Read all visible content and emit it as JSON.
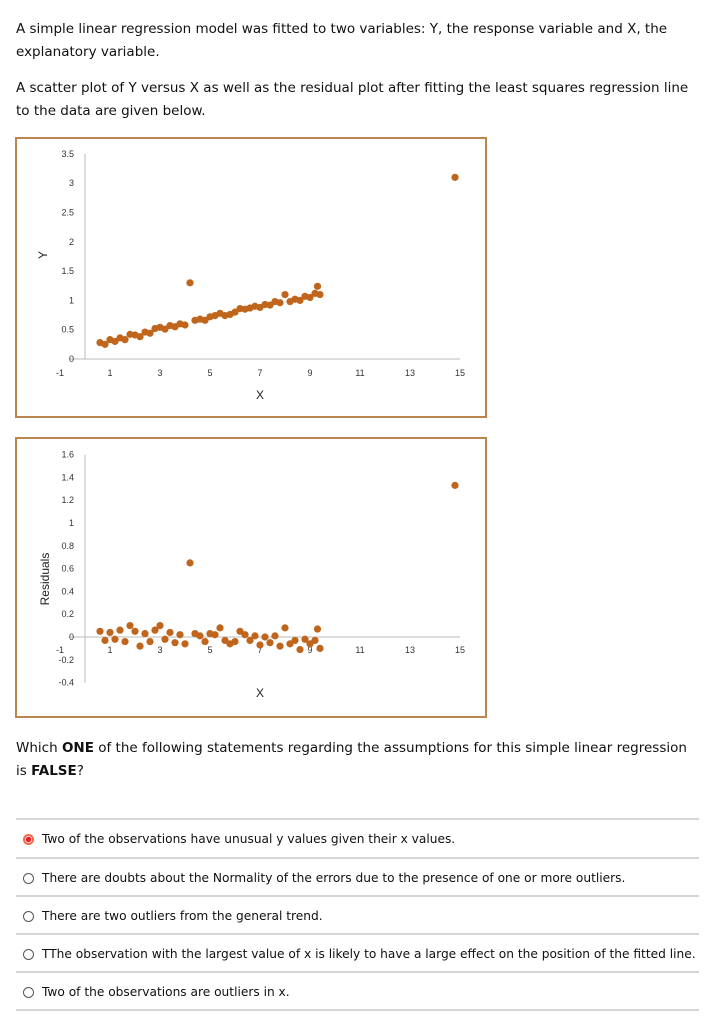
{
  "intro": {
    "p1": "A simple linear regression model was fitted to two variables: Y, the response variable and X, the explanatory variable.",
    "p2": "A scatter plot of Y versus X as well as the residual plot after fitting the least squares regression line to the data are given below."
  },
  "colors": {
    "points": "#c0651c",
    "frame": "#b9864f",
    "selected_radio": "#e8202a"
  },
  "chart_data": [
    {
      "type": "scatter",
      "xlabel": "X",
      "ylabel": "Y",
      "xlim": [
        -1,
        15
      ],
      "ylim": [
        0,
        3.5
      ],
      "xticks": [
        "-1",
        "1",
        "3",
        "5",
        "7",
        "9",
        "11",
        "13",
        "15"
      ],
      "yticks": [
        "3.5",
        "3",
        "2.5",
        "2",
        "1.5",
        "1",
        "0.5",
        "0"
      ],
      "grid": false,
      "x": [
        0.6,
        0.8,
        1.0,
        1.2,
        1.4,
        1.6,
        1.8,
        2.0,
        2.2,
        2.4,
        2.6,
        2.8,
        3.0,
        3.2,
        3.4,
        3.6,
        3.8,
        4.0,
        4.4,
        4.6,
        4.8,
        5.0,
        5.2,
        5.4,
        5.6,
        5.8,
        6.0,
        6.2,
        6.4,
        6.6,
        6.8,
        7.0,
        7.2,
        7.4,
        7.6,
        7.8,
        8.0,
        8.2,
        8.4,
        8.6,
        8.8,
        9.0,
        9.2,
        9.3,
        9.4,
        4.2,
        14.8
      ],
      "y": [
        0.28,
        0.25,
        0.33,
        0.3,
        0.36,
        0.33,
        0.42,
        0.41,
        0.38,
        0.46,
        0.44,
        0.52,
        0.54,
        0.51,
        0.57,
        0.55,
        0.6,
        0.58,
        0.66,
        0.68,
        0.66,
        0.72,
        0.74,
        0.78,
        0.74,
        0.76,
        0.8,
        0.86,
        0.85,
        0.87,
        0.9,
        0.88,
        0.93,
        0.92,
        0.98,
        0.96,
        1.1,
        0.98,
        1.02,
        1.0,
        1.07,
        1.05,
        1.12,
        1.24,
        1.1,
        1.3,
        3.1
      ]
    },
    {
      "type": "scatter",
      "xlabel": "X",
      "ylabel": "Residuals",
      "xlim": [
        -1,
        15
      ],
      "ylim": [
        -0.4,
        1.6
      ],
      "xticks": [
        "-1",
        "1",
        "3",
        "5",
        "7",
        "9",
        "11",
        "13",
        "15"
      ],
      "yticks": [
        "1.6",
        "1.4",
        "1.2",
        "1",
        "0.8",
        "0.6",
        "0.4",
        "0.2",
        "0",
        "-0.2",
        "-0.4"
      ],
      "grid": false,
      "x": [
        0.6,
        0.8,
        1.0,
        1.2,
        1.4,
        1.6,
        1.8,
        2.0,
        2.2,
        2.4,
        2.6,
        2.8,
        3.0,
        3.2,
        3.4,
        3.6,
        3.8,
        4.0,
        4.4,
        4.6,
        4.8,
        5.0,
        5.2,
        5.4,
        5.6,
        5.8,
        6.0,
        6.2,
        6.4,
        6.6,
        6.8,
        7.0,
        7.2,
        7.4,
        7.6,
        7.8,
        8.0,
        8.2,
        8.4,
        8.6,
        8.8,
        9.0,
        9.2,
        9.3,
        9.4,
        4.2,
        14.8
      ],
      "y": [
        0.05,
        -0.03,
        0.04,
        -0.02,
        0.06,
        -0.04,
        0.1,
        0.05,
        -0.08,
        0.03,
        -0.04,
        0.06,
        0.1,
        -0.02,
        0.04,
        -0.05,
        0.02,
        -0.06,
        0.03,
        0.01,
        -0.04,
        0.03,
        0.02,
        0.08,
        -0.03,
        -0.06,
        -0.04,
        0.05,
        0.02,
        -0.03,
        0.01,
        -0.07,
        0.0,
        -0.05,
        0.01,
        -0.08,
        0.08,
        -0.06,
        -0.03,
        -0.11,
        -0.02,
        -0.06,
        -0.03,
        0.07,
        -0.1,
        0.65,
        1.33
      ]
    }
  ],
  "question": {
    "pre": "Which ",
    "em1": "ONE",
    "mid": " of the following statements regarding the assumptions for this simple linear regression is ",
    "em2": "FALSE",
    "post": "?"
  },
  "options": [
    {
      "label": "Two of the observations have unusual y values given their x values.",
      "selected": true
    },
    {
      "label": "There are doubts about the Normality of the errors due to the presence of one or more outliers.",
      "selected": false
    },
    {
      "label": "There are two outliers from the general trend.",
      "selected": false
    },
    {
      "label": "TThe observation with the largest value of x is likely to have a large effect on the position of the fitted line.",
      "selected": false
    },
    {
      "label": "Two of the observations are outliers in x.",
      "selected": false
    }
  ]
}
